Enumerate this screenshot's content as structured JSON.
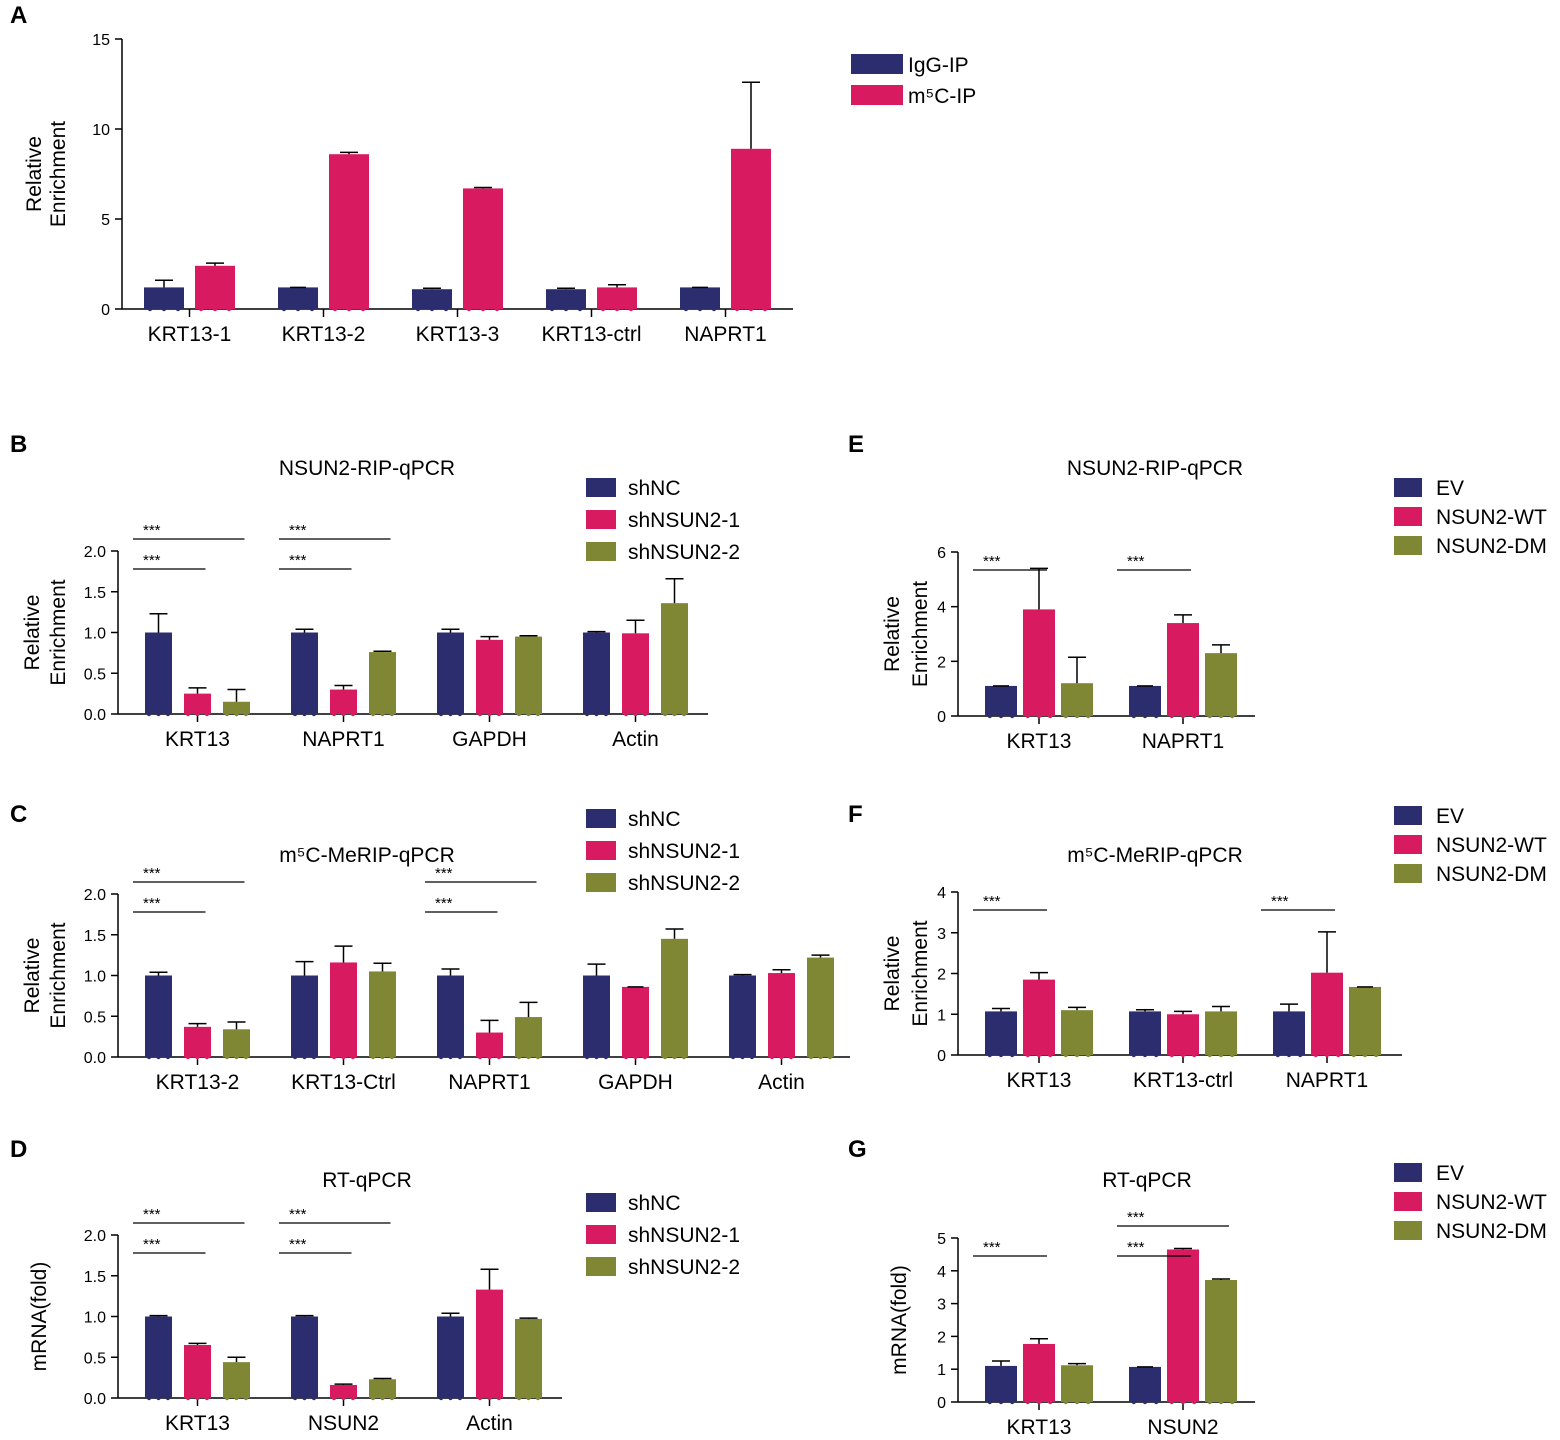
{
  "colors": {
    "navy": "#2b2d6e",
    "magenta": "#d81b60",
    "olive": "#7f8735"
  },
  "chart_data": [
    {
      "panel": "A",
      "type": "bar",
      "title": "",
      "ylabel": [
        "Relative",
        "Enrichment"
      ],
      "ylim": [
        0,
        15
      ],
      "yticks": [
        "0",
        "5",
        "10",
        "15"
      ],
      "categories": [
        "KRT13-1",
        "KRT13-2",
        "KRT13-3",
        "KRT13-ctrl",
        "NAPRT1"
      ],
      "series": [
        {
          "name": "IgG-IP",
          "color": "navy",
          "values": [
            1.2,
            1.2,
            1.1,
            1.1,
            1.2
          ],
          "errors": [
            0.4,
            0,
            0.05,
            0.05,
            0
          ]
        },
        {
          "name": "m⁵C-IP",
          "color": "magenta",
          "values": [
            2.4,
            8.6,
            6.7,
            1.2,
            8.9
          ],
          "errors": [
            0.15,
            0.1,
            0.05,
            0.15,
            3.7
          ]
        }
      ],
      "legend": [
        "IgG-IP",
        "m⁵C-IP"
      ],
      "significance": []
    },
    {
      "panel": "B",
      "type": "bar",
      "title": "NSUN2-RIP-qPCR",
      "ylabel": [
        "Relative",
        "Enrichment"
      ],
      "ylim": [
        0,
        2
      ],
      "yticks": [
        "0.0",
        "0.5",
        "1.0",
        "1.5",
        "2.0"
      ],
      "categories": [
        "KRT13",
        "NAPRT1",
        "GAPDH",
        "Actin"
      ],
      "series": [
        {
          "name": "shNC",
          "color": "navy",
          "values": [
            1.0,
            1.0,
            1.0,
            1.0
          ],
          "errors": [
            0.23,
            0.04,
            0.04,
            0.01
          ]
        },
        {
          "name": "shNSUN2-1",
          "color": "magenta",
          "values": [
            0.25,
            0.3,
            0.91,
            0.99
          ],
          "errors": [
            0.07,
            0.05,
            0.04,
            0.16
          ]
        },
        {
          "name": "shNSUN2-2",
          "color": "olive",
          "values": [
            0.15,
            0.76,
            0.95,
            1.36
          ],
          "errors": [
            0.15,
            0.01,
            0.01,
            0.3
          ]
        }
      ],
      "legend": [
        "shNC",
        "shNSUN2-1",
        "shNSUN2-2"
      ],
      "significance": [
        {
          "group": 0,
          "from": 0,
          "to": 1,
          "level": 1,
          "label": "***"
        },
        {
          "group": 0,
          "from": 0,
          "to": 2,
          "level": 2,
          "label": "***"
        },
        {
          "group": 1,
          "from": 0,
          "to": 1,
          "level": 1,
          "label": "***"
        },
        {
          "group": 1,
          "from": 0,
          "to": 2,
          "level": 2,
          "label": "***"
        }
      ]
    },
    {
      "panel": "C",
      "type": "bar",
      "title": "m⁵C-MeRIP-qPCR",
      "ylabel": [
        "Relative",
        "Enrichment"
      ],
      "ylim": [
        0,
        2
      ],
      "yticks": [
        "0.0",
        "0.5",
        "1.0",
        "1.5",
        "2.0"
      ],
      "categories": [
        "KRT13-2",
        "KRT13-Ctrl",
        "NAPRT1",
        "GAPDH",
        "Actin"
      ],
      "series": [
        {
          "name": "shNC",
          "color": "navy",
          "values": [
            1.0,
            1.0,
            1.0,
            1.0,
            1.0
          ],
          "errors": [
            0.04,
            0.17,
            0.08,
            0.14,
            0.01
          ]
        },
        {
          "name": "shNSUN2-1",
          "color": "magenta",
          "values": [
            0.37,
            1.16,
            0.3,
            0.86,
            1.03
          ],
          "errors": [
            0.04,
            0.2,
            0.15,
            0,
            0.04
          ]
        },
        {
          "name": "shNSUN2-2",
          "color": "olive",
          "values": [
            0.34,
            1.05,
            0.49,
            1.45,
            1.22
          ],
          "errors": [
            0.09,
            0.1,
            0.18,
            0.12,
            0.03
          ]
        }
      ],
      "legend": [
        "shNC",
        "shNSUN2-1",
        "shNSUN2-2"
      ],
      "significance": [
        {
          "group": 0,
          "from": 0,
          "to": 1,
          "level": 1,
          "label": "***"
        },
        {
          "group": 0,
          "from": 0,
          "to": 2,
          "level": 2,
          "label": "***"
        },
        {
          "group": 2,
          "from": 0,
          "to": 1,
          "level": 1,
          "label": "***"
        },
        {
          "group": 2,
          "from": 0,
          "to": 2,
          "level": 2,
          "label": "***"
        }
      ]
    },
    {
      "panel": "D",
      "type": "bar",
      "title": "RT-qPCR",
      "ylabel": [
        "mRNA(fold)"
      ],
      "ylim": [
        0,
        2
      ],
      "yticks": [
        "0.0",
        "0.5",
        "1.0",
        "1.5",
        "2.0"
      ],
      "categories": [
        "KRT13",
        "NSUN2",
        "Actin"
      ],
      "series": [
        {
          "name": "shNC",
          "color": "navy",
          "values": [
            1.0,
            1.0,
            1.0
          ],
          "errors": [
            0.01,
            0.01,
            0.04
          ]
        },
        {
          "name": "shNSUN2-1",
          "color": "magenta",
          "values": [
            0.65,
            0.16,
            1.33
          ],
          "errors": [
            0.02,
            0.01,
            0.25
          ]
        },
        {
          "name": "shNSUN2-2",
          "color": "olive",
          "values": [
            0.44,
            0.23,
            0.97
          ],
          "errors": [
            0.06,
            0.01,
            0.01
          ]
        }
      ],
      "legend": [
        "shNC",
        "shNSUN2-1",
        "shNSUN2-2"
      ],
      "significance": [
        {
          "group": 0,
          "from": 0,
          "to": 1,
          "level": 1,
          "label": "***"
        },
        {
          "group": 0,
          "from": 0,
          "to": 2,
          "level": 2,
          "label": "***"
        },
        {
          "group": 1,
          "from": 0,
          "to": 1,
          "level": 1,
          "label": "***"
        },
        {
          "group": 1,
          "from": 0,
          "to": 2,
          "level": 2,
          "label": "***"
        }
      ]
    },
    {
      "panel": "E",
      "type": "bar",
      "title": "NSUN2-RIP-qPCR",
      "ylabel": [
        "Relative",
        "Enrichment"
      ],
      "ylim": [
        0,
        6
      ],
      "yticks": [
        "0",
        "2",
        "4",
        "6"
      ],
      "categories": [
        "KRT13",
        "NAPRT1"
      ],
      "series": [
        {
          "name": "EV",
          "color": "navy",
          "values": [
            1.1,
            1.1
          ],
          "errors": [
            0,
            0
          ]
        },
        {
          "name": "NSUN2-WT",
          "color": "magenta",
          "values": [
            3.9,
            3.4
          ],
          "errors": [
            1.5,
            0.3
          ]
        },
        {
          "name": "NSUN2-DM",
          "color": "olive",
          "values": [
            1.2,
            2.3
          ],
          "errors": [
            0.95,
            0.3
          ]
        }
      ],
      "legend": [
        "EV",
        "NSUN2-WT",
        "NSUN2-DM"
      ],
      "significance": [
        {
          "group": 0,
          "from": 0,
          "to": 1,
          "level": 1,
          "label": "***"
        },
        {
          "group": 1,
          "from": 0,
          "to": 1,
          "level": 1,
          "label": "***"
        }
      ]
    },
    {
      "panel": "F",
      "type": "bar",
      "title": "m⁵C-MeRIP-qPCR",
      "ylabel": [
        "Relative",
        "Enrichment"
      ],
      "ylim": [
        0,
        4
      ],
      "yticks": [
        "0",
        "1",
        "2",
        "3",
        "4"
      ],
      "categories": [
        "KRT13",
        "KRT13-ctrl",
        "NAPRT1"
      ],
      "series": [
        {
          "name": "EV",
          "color": "navy",
          "values": [
            1.07,
            1.07,
            1.07
          ],
          "errors": [
            0.07,
            0.04,
            0.18
          ]
        },
        {
          "name": "NSUN2-WT",
          "color": "magenta",
          "values": [
            1.85,
            1.0,
            2.02
          ],
          "errors": [
            0.17,
            0.07,
            1.0
          ]
        },
        {
          "name": "NSUN2-DM",
          "color": "olive",
          "values": [
            1.1,
            1.07,
            1.67
          ],
          "errors": [
            0.07,
            0.12,
            0
          ]
        }
      ],
      "legend": [
        "EV",
        "NSUN2-WT",
        "NSUN2-DM"
      ],
      "significance": [
        {
          "group": 0,
          "from": 0,
          "to": 1,
          "level": 1,
          "label": "***"
        },
        {
          "group": 2,
          "from": 0,
          "to": 1,
          "level": 1,
          "label": "***"
        }
      ]
    },
    {
      "panel": "G",
      "type": "bar",
      "title": "RT-qPCR",
      "ylabel": [
        "mRNA(fold)"
      ],
      "ylim": [
        0,
        5
      ],
      "yticks": [
        "0",
        "1",
        "2",
        "3",
        "4",
        "5"
      ],
      "categories": [
        "KRT13",
        "NSUN2"
      ],
      "series": [
        {
          "name": "EV",
          "color": "navy",
          "values": [
            1.1,
            1.07
          ],
          "errors": [
            0.15,
            0
          ]
        },
        {
          "name": "NSUN2-WT",
          "color": "magenta",
          "values": [
            1.77,
            4.65
          ],
          "errors": [
            0.16,
            0.03
          ]
        },
        {
          "name": "NSUN2-DM",
          "color": "olive",
          "values": [
            1.12,
            3.72
          ],
          "errors": [
            0.05,
            0.03
          ]
        }
      ],
      "legend": [
        "EV",
        "NSUN2-WT",
        "NSUN2-DM"
      ],
      "significance": [
        {
          "group": 0,
          "from": 0,
          "to": 1,
          "level": 1,
          "label": "***"
        },
        {
          "group": 1,
          "from": 0,
          "to": 1,
          "level": 1,
          "label": "***"
        },
        {
          "group": 1,
          "from": 0,
          "to": 2,
          "level": 2,
          "label": "***"
        }
      ]
    }
  ]
}
